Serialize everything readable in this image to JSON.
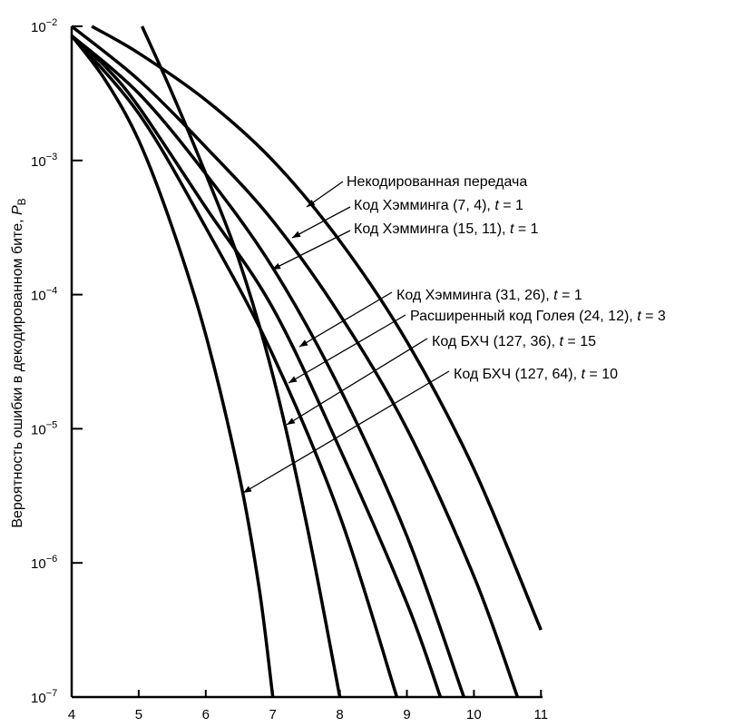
{
  "chart_data": {
    "type": "line",
    "title": "",
    "xlabel": "",
    "ylabel": "Вероятность ошибки в декодированном бите, P",
    "ylabel_subscript": "B",
    "xlim": [
      4,
      11
    ],
    "ylim": [
      1e-07,
      0.01
    ],
    "yscale": "log",
    "grid": false,
    "x_ticks": [
      "4",
      "5",
      "6",
      "7",
      "8",
      "9",
      "10",
      "11"
    ],
    "y_ticks": [
      {
        "base": "10",
        "exp": "−2",
        "log": -2
      },
      {
        "base": "10",
        "exp": "−3",
        "log": -3
      },
      {
        "base": "10",
        "exp": "−4",
        "log": -4
      },
      {
        "base": "10",
        "exp": "−5",
        "log": -5
      },
      {
        "base": "10",
        "exp": "−6",
        "log": -6
      },
      {
        "base": "10",
        "exp": "−7",
        "log": -7
      }
    ],
    "series": [
      {
        "name": "Некодированная передача",
        "label": "Некодированная передача",
        "x": [
          4.3,
          5,
          6,
          7,
          8,
          9,
          10,
          11
        ],
        "log10_y": [
          -2.0,
          -2.2,
          -2.55,
          -3.0,
          -3.6,
          -4.35,
          -5.3,
          -6.5
        ]
      },
      {
        "name": "Код Хэмминга (7, 4), t = 1",
        "label": "Код Хэмминга (7, 4), ",
        "t": "t",
        "tval": " = 1",
        "x": [
          4,
          5,
          6,
          7,
          8,
          9,
          10,
          10.65
        ],
        "log10_y": [
          -2.0,
          -2.4,
          -2.9,
          -3.45,
          -4.15,
          -5.0,
          -6.1,
          -7.0
        ]
      },
      {
        "name": "Код Хэмминга (15, 11), t = 1",
        "label": "Код Хэмминга (15, 11), ",
        "t": "t",
        "tval": " = 1",
        "x": [
          4,
          5,
          6,
          7,
          8,
          9,
          9.85
        ],
        "log10_y": [
          -2.07,
          -2.5,
          -3.1,
          -3.8,
          -4.7,
          -5.8,
          -7.0
        ]
      },
      {
        "name": "Код Хэмминга (31, 26), t = 1",
        "label": "Код Хэмминга (31, 26), ",
        "t": "t",
        "tval": " = 1",
        "x": [
          4,
          4.5,
          5,
          6,
          7,
          8,
          9,
          9.5
        ],
        "log10_y": [
          -2.07,
          -2.3,
          -2.6,
          -3.35,
          -4.1,
          -5.15,
          -6.3,
          -7.0
        ]
      },
      {
        "name": "Расширенный код Голея (24, 12), t = 3",
        "label": "Расширенный код Голея (24, 12), ",
        "t": "t",
        "tval": " = 3",
        "x": [
          4,
          5,
          6,
          7,
          8,
          8.85
        ],
        "log10_y": [
          -2.07,
          -2.65,
          -3.5,
          -4.45,
          -5.65,
          -7.0
        ]
      },
      {
        "name": "Код БХЧ (127, 36), t = 15",
        "label": "Код БХЧ (127, 36), ",
        "t": "t",
        "tval": " = 15",
        "x": [
          5.05,
          5.5,
          6,
          6.5,
          7,
          7.5,
          8
        ],
        "log10_y": [
          -2.0,
          -2.5,
          -3.1,
          -3.75,
          -4.6,
          -5.7,
          -7.0
        ]
      },
      {
        "name": "Код БХЧ (127, 64), t = 10",
        "label": "Код БХЧ (127, 64), ",
        "t": "t",
        "tval": " = 10",
        "x": [
          4,
          4.5,
          5,
          5.5,
          6,
          6.5,
          6.8,
          7
        ],
        "log10_y": [
          -2.07,
          -2.4,
          -2.85,
          -3.5,
          -4.3,
          -5.35,
          -6.2,
          -7.0
        ]
      }
    ]
  }
}
